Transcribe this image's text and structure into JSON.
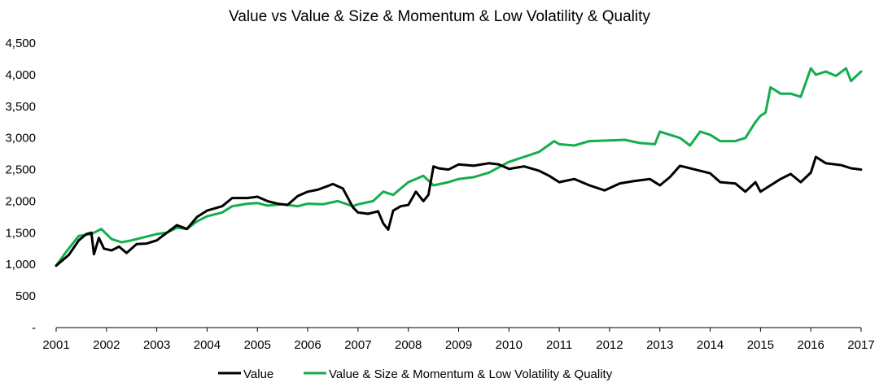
{
  "chart_data": {
    "type": "line",
    "title": "Value vs Value & Size & Momentum & Low Volatility & Quality",
    "xlabel": "",
    "ylabel": "",
    "xlim": [
      2001,
      2017
    ],
    "ylim": [
      0,
      4500
    ],
    "x_ticks": [
      2001,
      2002,
      2003,
      2004,
      2005,
      2006,
      2007,
      2008,
      2009,
      2010,
      2011,
      2012,
      2013,
      2014,
      2015,
      2016,
      2017
    ],
    "x_tick_labels": [
      "2001",
      "2002",
      "2003",
      "2004",
      "2005",
      "2006",
      "2007",
      "2008",
      "2009",
      "2010",
      "2011",
      "2012",
      "2013",
      "2014",
      "2015",
      "2016",
      "2017"
    ],
    "y_ticks": [
      0,
      500,
      1000,
      1500,
      2000,
      2500,
      3000,
      3500,
      4000,
      4500
    ],
    "y_tick_labels": [
      "-",
      "500",
      "1,000",
      "1,500",
      "2,000",
      "2,500",
      "3,000",
      "3,500",
      "4,000",
      "4,500"
    ],
    "grid": false,
    "legend_position": "bottom",
    "series": [
      {
        "name": "Value",
        "color": "#000000",
        "x": [
          2001,
          2001.25,
          2001.45,
          2001.6,
          2001.7,
          2001.75,
          2001.85,
          2001.95,
          2002.1,
          2002.25,
          2002.4,
          2002.6,
          2002.8,
          2003.0,
          2003.2,
          2003.4,
          2003.6,
          2003.8,
          2004.0,
          2004.3,
          2004.5,
          2004.8,
          2005.0,
          2005.2,
          2005.4,
          2005.6,
          2005.8,
          2006.0,
          2006.2,
          2006.4,
          2006.5,
          2006.7,
          2006.9,
          2007.0,
          2007.2,
          2007.4,
          2007.5,
          2007.6,
          2007.7,
          2007.85,
          2008.0,
          2008.15,
          2008.3,
          2008.4,
          2008.5,
          2008.6,
          2008.8,
          2009.0,
          2009.3,
          2009.6,
          2009.8,
          2010.0,
          2010.3,
          2010.6,
          2010.8,
          2011.0,
          2011.3,
          2011.6,
          2011.9,
          2012.2,
          2012.5,
          2012.8,
          2013.0,
          2013.2,
          2013.4,
          2013.7,
          2014.0,
          2014.2,
          2014.5,
          2014.7,
          2014.9,
          2015.0,
          2015.2,
          2015.4,
          2015.6,
          2015.8,
          2016.0,
          2016.1,
          2016.3,
          2016.6,
          2016.8,
          2017.0
        ],
        "values": [
          980,
          1150,
          1380,
          1480,
          1500,
          1160,
          1420,
          1250,
          1220,
          1280,
          1180,
          1320,
          1330,
          1380,
          1500,
          1620,
          1560,
          1750,
          1850,
          1920,
          2050,
          2050,
          2070,
          2000,
          1960,
          1940,
          2080,
          2150,
          2180,
          2240,
          2270,
          2200,
          1900,
          1820,
          1800,
          1840,
          1650,
          1550,
          1850,
          1920,
          1940,
          2150,
          2000,
          2100,
          2550,
          2520,
          2500,
          2580,
          2560,
          2600,
          2580,
          2510,
          2550,
          2480,
          2400,
          2300,
          2350,
          2250,
          2170,
          2280,
          2320,
          2350,
          2250,
          2380,
          2560,
          2500,
          2440,
          2300,
          2280,
          2150,
          2300,
          2150,
          2250,
          2350,
          2430,
          2300,
          2450,
          2700,
          2600,
          2570,
          2520,
          2500
        ]
      },
      {
        "name": "Value & Size & Momentum & Low Volatility & Quality",
        "color": "#14ad4e",
        "x": [
          2001,
          2001.2,
          2001.45,
          2001.7,
          2001.9,
          2002.1,
          2002.3,
          2002.5,
          2002.7,
          2003.0,
          2003.2,
          2003.4,
          2003.6,
          2003.8,
          2004.0,
          2004.3,
          2004.5,
          2004.8,
          2005.0,
          2005.2,
          2005.5,
          2005.8,
          2006.0,
          2006.3,
          2006.6,
          2006.9,
          2007.0,
          2007.3,
          2007.5,
          2007.7,
          2008.0,
          2008.3,
          2008.5,
          2008.8,
          2009.0,
          2009.3,
          2009.6,
          2010.0,
          2010.3,
          2010.6,
          2010.9,
          2011.0,
          2011.3,
          2011.6,
          2012.0,
          2012.3,
          2012.6,
          2012.9,
          2013.0,
          2013.2,
          2013.4,
          2013.6,
          2013.8,
          2014.0,
          2014.2,
          2014.5,
          2014.7,
          2014.9,
          2015.0,
          2015.1,
          2015.2,
          2015.4,
          2015.6,
          2015.8,
          2016.0,
          2016.1,
          2016.3,
          2016.5,
          2016.7,
          2016.8,
          2017.0
        ],
        "values": [
          980,
          1200,
          1450,
          1480,
          1560,
          1400,
          1350,
          1380,
          1420,
          1480,
          1500,
          1580,
          1560,
          1680,
          1760,
          1820,
          1920,
          1960,
          1970,
          1930,
          1950,
          1920,
          1960,
          1950,
          2000,
          1920,
          1950,
          2000,
          2150,
          2100,
          2300,
          2400,
          2250,
          2300,
          2350,
          2380,
          2450,
          2620,
          2700,
          2780,
          2950,
          2900,
          2880,
          2950,
          2960,
          2970,
          2920,
          2900,
          3100,
          3050,
          3000,
          2880,
          3100,
          3050,
          2950,
          2950,
          3000,
          3250,
          3350,
          3400,
          3800,
          3700,
          3700,
          3650,
          4100,
          4000,
          4050,
          3980,
          4100,
          3900,
          4050
        ]
      }
    ]
  }
}
